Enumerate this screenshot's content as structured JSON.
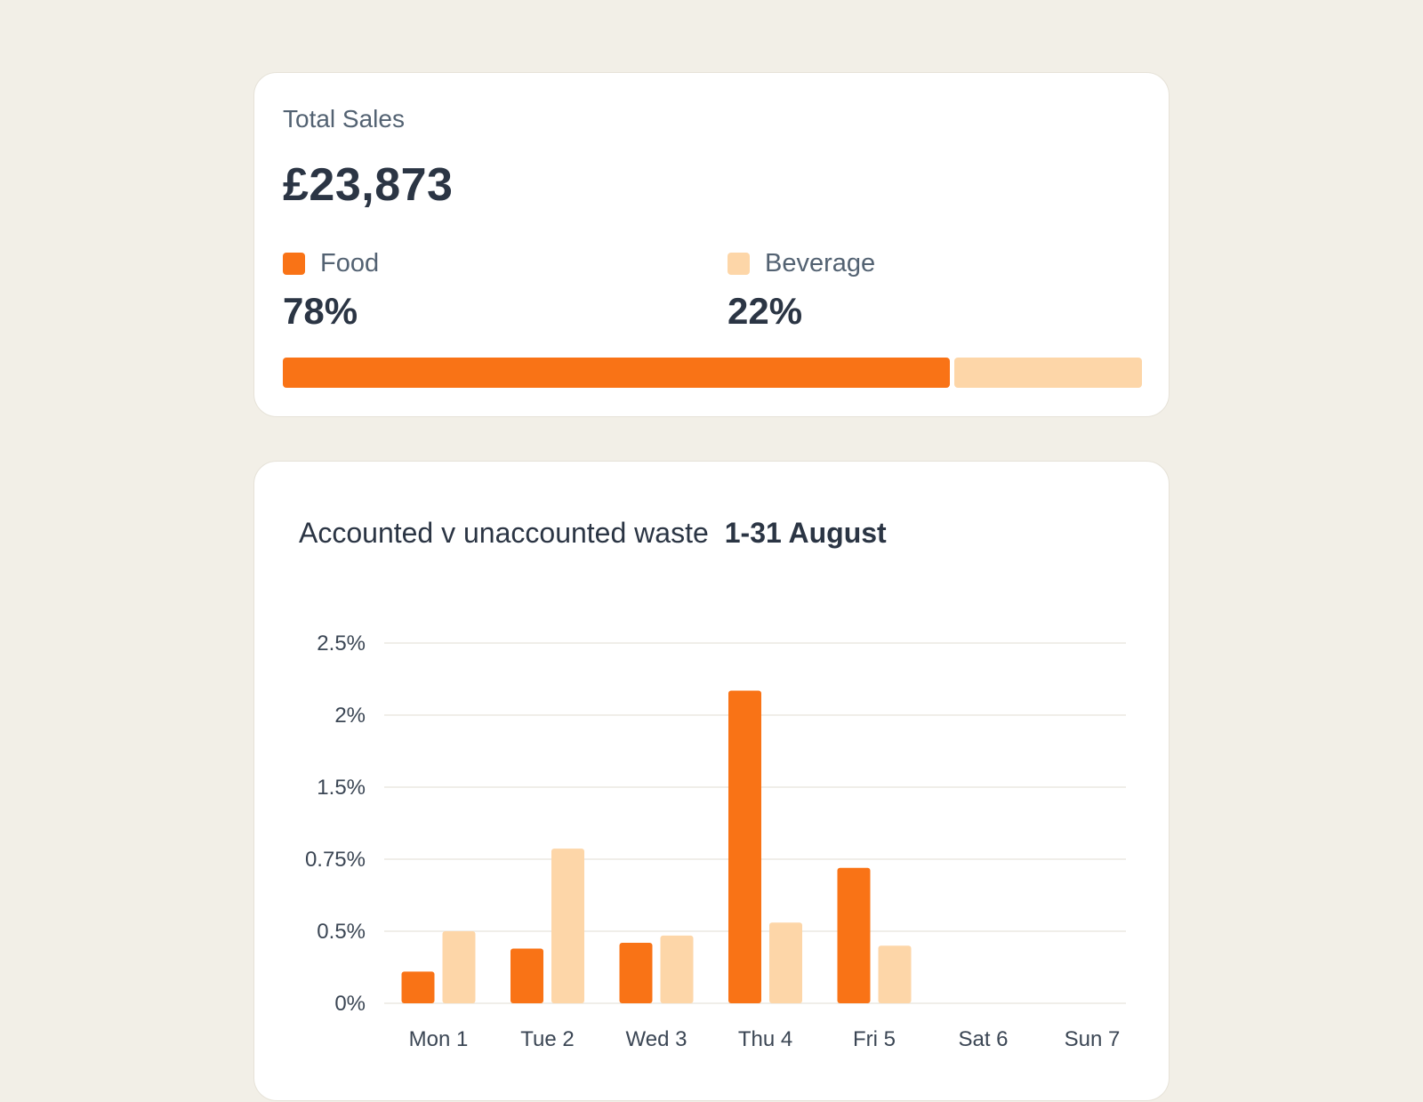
{
  "sales": {
    "title": "Total Sales",
    "total": "£23,873",
    "food": {
      "label": "Food",
      "percent_label": "78%",
      "share": 0.78,
      "color": "#f97316"
    },
    "beverage": {
      "label": "Beverage",
      "percent_label": "22%",
      "share": 0.22,
      "color": "#fdd6a8"
    }
  },
  "chart_heading": {
    "title": "Accounted v unaccounted waste",
    "range": "1-31 August"
  },
  "chart_data": {
    "type": "bar",
    "categories": [
      "Mon 1",
      "Tue 2",
      "Wed 3",
      "Thu 4",
      "Fri 5",
      "Sat 6",
      "Sun 7"
    ],
    "y_ticks": [
      "0%",
      "0.5%",
      "0.75%",
      "1.5%",
      "2%",
      "2.5%"
    ],
    "series": [
      {
        "values": [
          0.22,
          0.38,
          0.42,
          2.17,
          0.72,
          0,
          0
        ],
        "color": "#f97316"
      },
      {
        "values": [
          0.5,
          0.86,
          0.47,
          0.53,
          0.4,
          0,
          0
        ],
        "color": "#fdd6a8"
      }
    ],
    "grid": true
  }
}
